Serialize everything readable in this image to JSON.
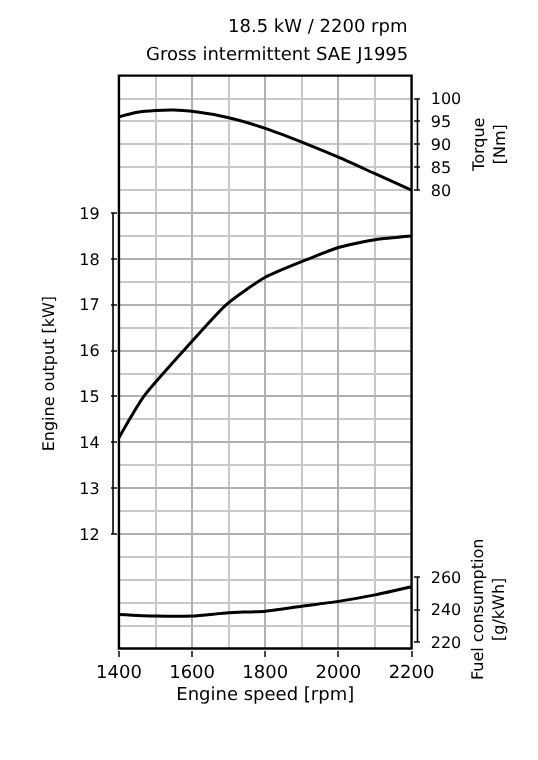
{
  "chart_data": {
    "type": "line",
    "title": "18.5 kW / 2200 rpm",
    "subtitle": "Gross intermittent SAE J1995",
    "xlabel": "Engine speed [rpm]",
    "ylabel": "Engine output [kW]",
    "y2label": "Torque [Nm]",
    "y3label": "Fuel consumption [g/kWh]",
    "xlim": [
      1400,
      2200
    ],
    "xticks": [
      1400,
      1600,
      1800,
      2000,
      2200
    ],
    "ylim": [
      9.5,
      22
    ],
    "yticks": [
      12,
      13,
      14,
      15,
      16,
      17,
      18,
      19
    ],
    "y2lim": [
      -20,
      105
    ],
    "y2ticks": [
      80,
      85,
      90,
      95,
      100
    ],
    "y3lim": [
      216,
      568
    ],
    "y3ticks": [
      220,
      240,
      260
    ],
    "grid": true,
    "series": [
      {
        "color": "#000000",
        "x": [
          1400,
          1468,
          1577,
          1693,
          1800,
          1918,
          2000,
          2100,
          2200
        ],
        "values": [
          14.1,
          15,
          16,
          17,
          17.6,
          18,
          18.25,
          18.42,
          18.5
        ]
      },
      {
        "color": "#000000",
        "axis": "y2",
        "x": [
          1400,
          1450,
          1500,
          1550,
          1600,
          1700,
          1800,
          1900,
          2000,
          2100,
          2200
        ],
        "values": [
          96,
          97,
          97.4,
          97.5,
          97.2,
          95.8,
          93.5,
          90.5,
          87.2,
          83.6,
          80
        ]
      },
      {
        "color": "#000000",
        "axis": "y3",
        "x": [
          1400,
          1500,
          1600,
          1700,
          1800,
          1900,
          2000,
          2100,
          2200
        ],
        "values": [
          237,
          236,
          236,
          238,
          239,
          242,
          245,
          249,
          254
        ]
      }
    ]
  }
}
